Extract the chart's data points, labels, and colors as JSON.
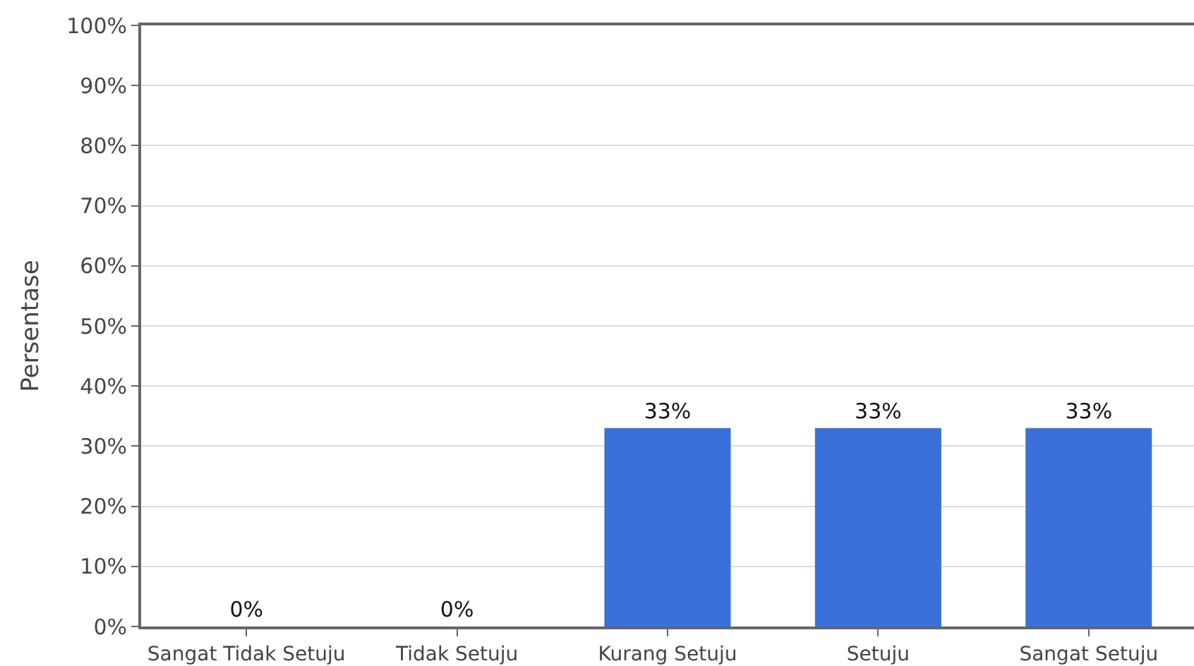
{
  "chart_data": {
    "type": "bar",
    "ylabel": "Persentase",
    "categories": [
      "Sangat Tidak Setuju",
      "Tidak Setuju",
      "Kurang Setuju",
      "Setuju",
      "Sangat Setuju"
    ],
    "values": [
      0,
      0,
      33,
      33,
      33
    ],
    "color": "#3a70d9",
    "value_labels": [
      "0%",
      "0%",
      "33%",
      "33%",
      "33%"
    ],
    "ylim": [
      0,
      100
    ],
    "yticks": [
      {
        "value": 0,
        "label": "0%"
      },
      {
        "value": 10,
        "label": "10%"
      },
      {
        "value": 20,
        "label": "20%"
      },
      {
        "value": 30,
        "label": "30%"
      },
      {
        "value": 40,
        "label": "40%"
      },
      {
        "value": 50,
        "label": "50%"
      },
      {
        "value": 60,
        "label": "60%"
      },
      {
        "value": 70,
        "label": "70%"
      },
      {
        "value": 80,
        "label": "80%"
      },
      {
        "value": 90,
        "label": "90%"
      },
      {
        "value": 100,
        "label": "100%"
      }
    ],
    "grid": "y"
  }
}
